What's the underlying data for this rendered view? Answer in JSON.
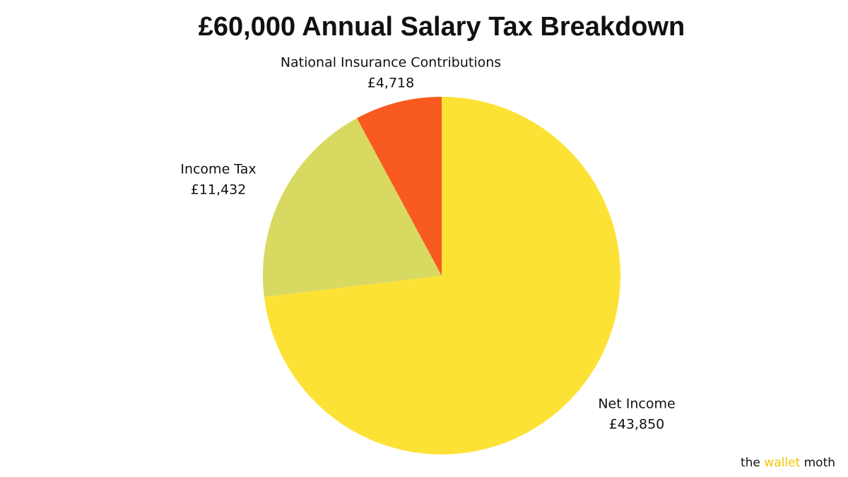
{
  "chart_data": {
    "type": "pie",
    "title": "£60,000 Annual Salary Tax Breakdown",
    "categories": [
      "Net Income",
      "Income Tax",
      "National Insurance Contributions"
    ],
    "values": [
      43850,
      11432,
      4718
    ],
    "value_labels": [
      "£43,850",
      "£11,432",
      "£4,718"
    ],
    "colors": [
      "#fde236",
      "#d8d961",
      "#f95a1f"
    ],
    "brand": [
      "the",
      "wallet",
      "moth"
    ]
  }
}
